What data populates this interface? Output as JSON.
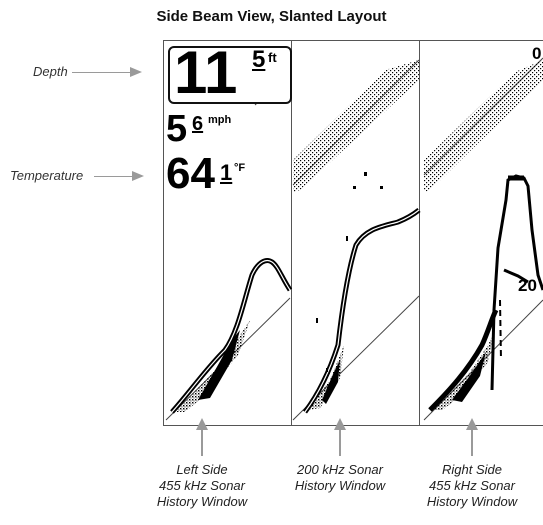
{
  "title": "Side Beam View, Slanted Layout",
  "callouts": {
    "depth": "Depth",
    "temperature": "Temperature"
  },
  "readouts": {
    "depth_whole": "11",
    "depth_fraction": "5",
    "depth_unit": "ft",
    "speed_whole": "5",
    "speed_fraction": "6",
    "speed_unit": "mph",
    "temp_whole": "64",
    "temp_fraction": "1",
    "temp_unit": "°F"
  },
  "scale_labels": {
    "top_right": "0",
    "mid_right": "20"
  },
  "captions": {
    "left": [
      "Left Side",
      "455 kHz Sonar",
      "History Window"
    ],
    "center": [
      "200 kHz Sonar",
      "History Window"
    ],
    "right": [
      "Right Side",
      "455 kHz Sonar",
      "History Window"
    ]
  },
  "colors": {
    "arrow": "#9a9a9a",
    "frame": "#555555",
    "sonar": "#000000"
  }
}
